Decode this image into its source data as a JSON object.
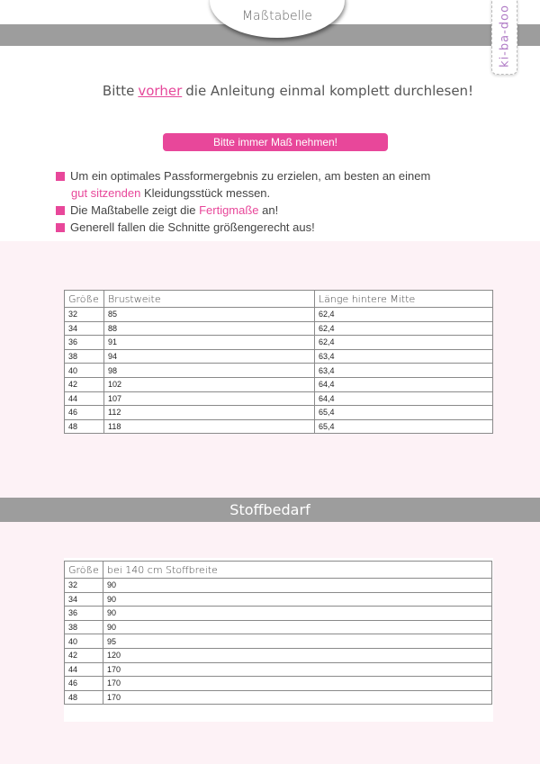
{
  "header": {
    "tab_title": "Maßtabelle",
    "logo_text": "ki-ba-doo"
  },
  "intro": {
    "before": "Bitte",
    "highlight": "vorher",
    "after": "die Anleitung einmal komplett durchlesen!"
  },
  "notice": "Bitte immer Maß nehmen!",
  "bullets": [
    {
      "a": "Um ein optimales Passformergebnis zu erzielen, am besten an einem",
      "pink": "gut sitzenden",
      "b": " Kleidungsstück messen."
    },
    {
      "a": "Die Maßtabelle zeigt die ",
      "pink": "Fertigmaße",
      "b": " an!"
    },
    {
      "a": "Generell fallen die Schnitte größengerecht aus!"
    }
  ],
  "size_table": {
    "headers": [
      "Größe",
      "Brustweite",
      "Länge hintere Mitte"
    ],
    "rows": [
      [
        "32",
        "85",
        "62,4"
      ],
      [
        "34",
        "88",
        "62,4"
      ],
      [
        "36",
        "91",
        "62,4"
      ],
      [
        "38",
        "94",
        "63,4"
      ],
      [
        "40",
        "98",
        "63,4"
      ],
      [
        "42",
        "102",
        "64,4"
      ],
      [
        "44",
        "107",
        "64,4"
      ],
      [
        "46",
        "112",
        "65,4"
      ],
      [
        "48",
        "118",
        "65,4"
      ]
    ]
  },
  "fabric_section": {
    "title": "Stoffbedarf",
    "headers": [
      "Größe",
      "bei 140 cm Stoffbreite"
    ],
    "rows": [
      [
        "32",
        "90"
      ],
      [
        "34",
        "90"
      ],
      [
        "36",
        "90"
      ],
      [
        "38",
        "90"
      ],
      [
        "40",
        "95"
      ],
      [
        "42",
        "120"
      ],
      [
        "44",
        "170"
      ],
      [
        "46",
        "170"
      ],
      [
        "48",
        "170"
      ]
    ]
  },
  "colors": {
    "accent": "#e8479a",
    "band": "#9d9d9d",
    "background_pink": "#fdf2f6"
  }
}
